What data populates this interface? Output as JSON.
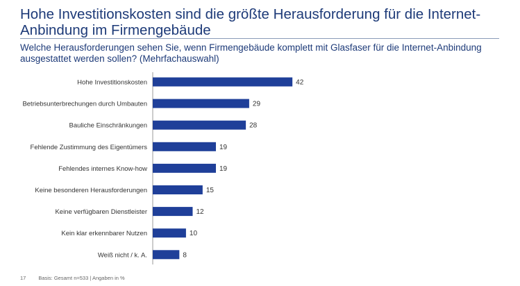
{
  "title": "Hohe Investitionskosten sind die größte Herausforderung für die Internet-Anbindung im Firmengebäude",
  "subtitle": "Welche Herausforderungen sehen Sie, wenn Firmengebäude komplett mit Glasfaser für die Internet-Anbindung ausgestattet werden sollen? (Mehrfachauswahl)",
  "footer": {
    "page": "17",
    "basis": "Basis: Gesamt n=533 | Angaben in %"
  },
  "chart_data": {
    "type": "bar",
    "orientation": "horizontal",
    "categories": [
      "Hohe Investitionskosten",
      "Betriebsunterbrechungen durch Umbauten",
      "Bauliche Einschränkungen",
      "Fehlende Zustimmung des Eigentümers",
      "Fehlendes internes Know-how",
      "Keine besonderen Herausforderungen",
      "Keine verfügbaren Dienstleister",
      "Kein klar erkennbarer Nutzen",
      "Weiß nicht / k. A."
    ],
    "values": [
      42,
      29,
      28,
      19,
      19,
      15,
      12,
      10,
      8
    ],
    "bar_color": "#1f3f99",
    "grid": false,
    "data_labels": true
  }
}
